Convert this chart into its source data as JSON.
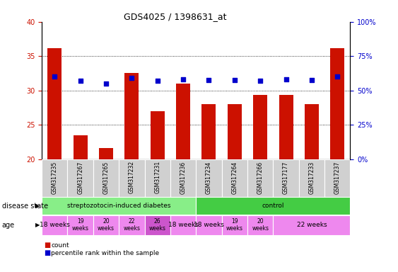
{
  "title": "GDS4025 / 1398631_at",
  "samples": [
    "GSM317235",
    "GSM317267",
    "GSM317265",
    "GSM317232",
    "GSM317231",
    "GSM317236",
    "GSM317234",
    "GSM317264",
    "GSM317266",
    "GSM317177",
    "GSM317233",
    "GSM317237"
  ],
  "count_values": [
    36.2,
    23.5,
    21.6,
    32.5,
    27.0,
    31.0,
    28.0,
    28.0,
    29.3,
    29.3,
    28.0,
    36.2
  ],
  "percentile_values": [
    60,
    57,
    55,
    59,
    57,
    58,
    57.5,
    57.5,
    57,
    58,
    57.5,
    60
  ],
  "ylim_left": [
    20,
    40
  ],
  "ylim_right": [
    0,
    100
  ],
  "yticks_left": [
    20,
    25,
    30,
    35,
    40
  ],
  "yticks_right": [
    0,
    25,
    50,
    75,
    100
  ],
  "ytick_labels_right": [
    "0%",
    "25%",
    "50%",
    "75%",
    "100%"
  ],
  "bar_color": "#cc1100",
  "scatter_color": "#0000cc",
  "bar_bottom": 20,
  "legend_count_label": "count",
  "legend_pct_label": "percentile rank within the sample",
  "bg_color": "#ffffff",
  "tick_label_color_left": "#cc1100",
  "tick_label_color_right": "#0000cc",
  "ds_groups": [
    {
      "label": "streptozotocin-induced diabetes",
      "start": 0,
      "end": 6,
      "color": "#88ee88"
    },
    {
      "label": "control",
      "start": 6,
      "end": 12,
      "color": "#44cc44"
    }
  ],
  "age_groups": [
    {
      "label": "18 weeks",
      "start": 0,
      "end": 1,
      "color": "#ee88ee",
      "multiline": false
    },
    {
      "label": "19\nweeks",
      "start": 1,
      "end": 2,
      "color": "#ee88ee",
      "multiline": true
    },
    {
      "label": "20\nweeks",
      "start": 2,
      "end": 3,
      "color": "#ee88ee",
      "multiline": true
    },
    {
      "label": "22\nweeks",
      "start": 3,
      "end": 4,
      "color": "#ee88ee",
      "multiline": true
    },
    {
      "label": "26\nweeks",
      "start": 4,
      "end": 5,
      "color": "#cc55cc",
      "multiline": true
    },
    {
      "label": "18 weeks",
      "start": 5,
      "end": 6,
      "color": "#ee88ee",
      "multiline": false
    },
    {
      "label": "18 weeks",
      "start": 6,
      "end": 7,
      "color": "#ee88ee",
      "multiline": false
    },
    {
      "label": "19\nweeks",
      "start": 7,
      "end": 8,
      "color": "#ee88ee",
      "multiline": true
    },
    {
      "label": "20\nweeks",
      "start": 8,
      "end": 9,
      "color": "#ee88ee",
      "multiline": true
    },
    {
      "label": "22 weeks",
      "start": 9,
      "end": 12,
      "color": "#ee88ee",
      "multiline": false
    }
  ]
}
